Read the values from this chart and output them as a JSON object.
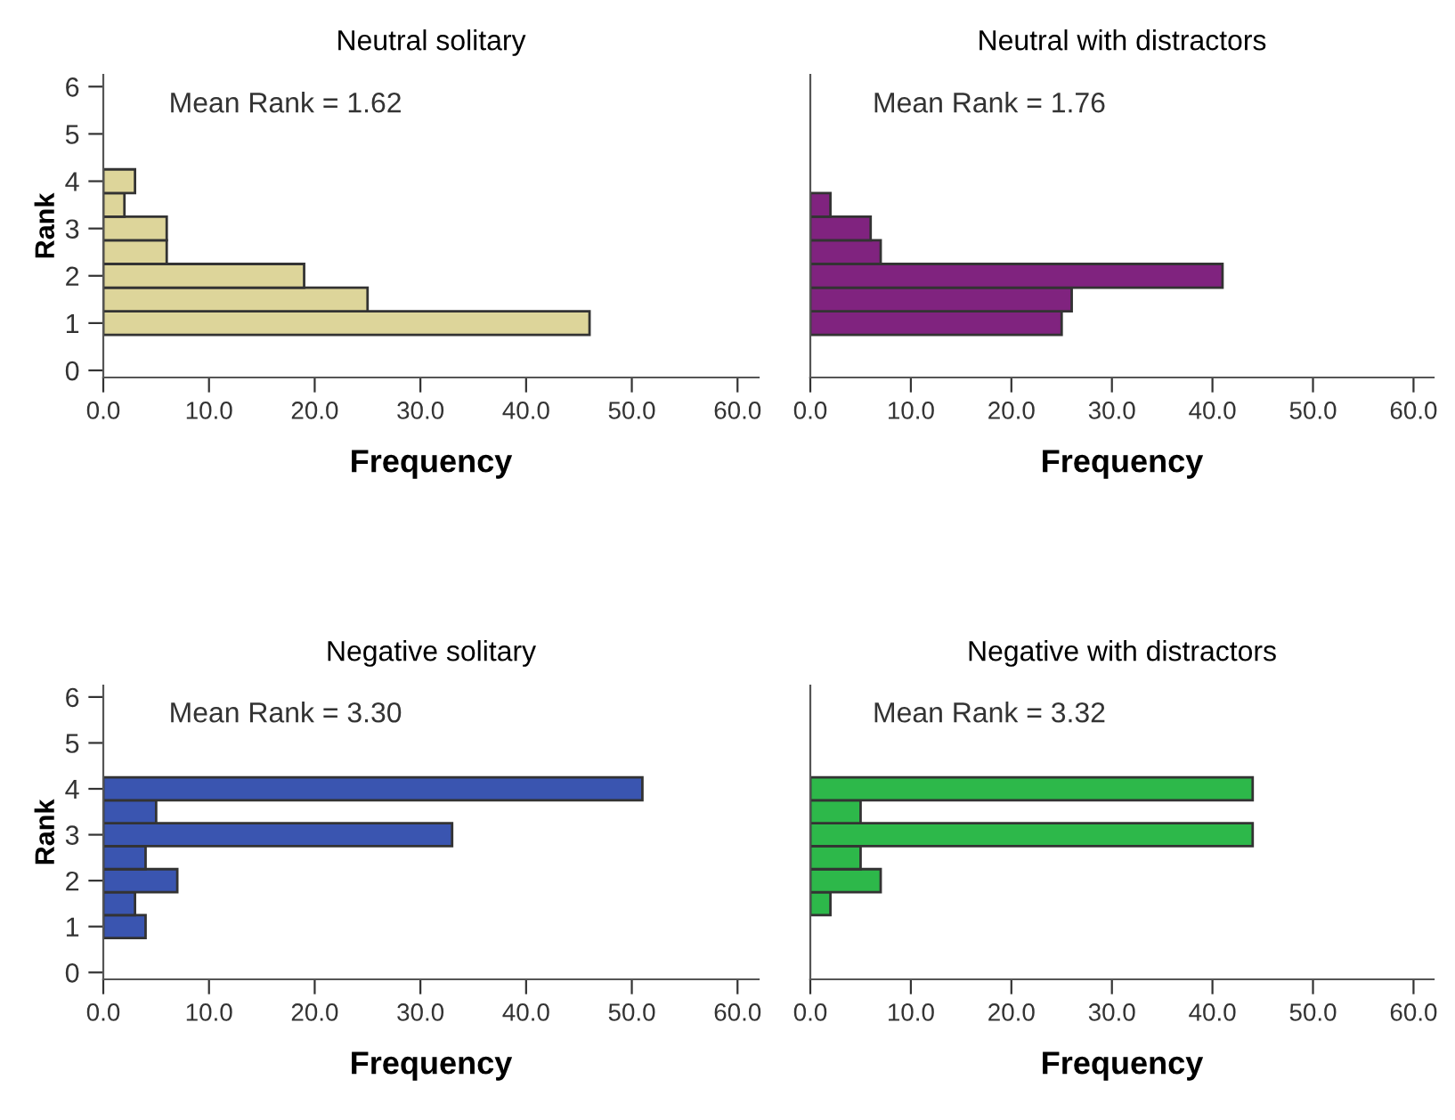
{
  "chart_data": [
    {
      "type": "histogram",
      "orientation": "horizontal",
      "title": "Neutral solitary",
      "xlabel": "Frequency",
      "ylabel": "Rank",
      "bins": [
        0.75,
        1.25,
        1.75,
        2.25,
        2.75,
        3.25,
        3.75,
        4.25
      ],
      "values": [
        46,
        25,
        19,
        6,
        6,
        2,
        3
      ],
      "color": "#ddd59a",
      "xlim": [
        0,
        62
      ],
      "xticks": [
        {
          "value": 0,
          "label": "0.0"
        },
        {
          "value": 10,
          "label": "10.0"
        },
        {
          "value": 20,
          "label": "20.0"
        },
        {
          "value": 30,
          "label": "30.0"
        },
        {
          "value": 40,
          "label": "40.0"
        },
        {
          "value": 50,
          "label": "50.0"
        },
        {
          "value": 60,
          "label": "60.0"
        }
      ],
      "ylim": [
        -0.15,
        6.25
      ],
      "yticks": [
        0,
        1,
        2,
        3,
        4,
        5,
        6
      ],
      "annotations": [
        "Mean Rank = 1.62"
      ],
      "grid": false,
      "legend": false
    },
    {
      "type": "histogram",
      "orientation": "horizontal",
      "title": "Neutral with distractors",
      "xlabel": "Frequency",
      "bins": [
        0.75,
        1.25,
        1.75,
        2.25,
        2.75,
        3.25,
        3.75
      ],
      "values": [
        25,
        26,
        41,
        7,
        6,
        2
      ],
      "color": "#80237f",
      "xlim": [
        0,
        62
      ],
      "xticks": [
        {
          "value": 0,
          "label": "0.0"
        },
        {
          "value": 10,
          "label": "10.0"
        },
        {
          "value": 20,
          "label": "20.0"
        },
        {
          "value": 30,
          "label": "30.0"
        },
        {
          "value": 40,
          "label": "40.0"
        },
        {
          "value": 50,
          "label": "50.0"
        },
        {
          "value": 60,
          "label": "60.0"
        }
      ],
      "ylim": [
        -0.15,
        6.25
      ],
      "yticks": [
        0,
        1,
        2,
        3,
        4,
        5,
        6
      ],
      "tick_labels": "x",
      "annotations": [
        "Mean Rank = 1.76"
      ],
      "grid": false,
      "legend": false
    },
    {
      "type": "histogram",
      "orientation": "horizontal",
      "title": "Negative solitary",
      "xlabel": "Frequency",
      "ylabel": "Rank",
      "bins": [
        0.75,
        1.25,
        1.75,
        2.25,
        2.75,
        3.25,
        3.75,
        4.25
      ],
      "values": [
        4,
        3,
        7,
        4,
        33,
        5,
        51
      ],
      "color": "#3a55b0",
      "xlim": [
        0,
        62
      ],
      "xticks": [
        {
          "value": 0,
          "label": "0.0"
        },
        {
          "value": 10,
          "label": "10.0"
        },
        {
          "value": 20,
          "label": "20.0"
        },
        {
          "value": 30,
          "label": "30.0"
        },
        {
          "value": 40,
          "label": "40.0"
        },
        {
          "value": 50,
          "label": "50.0"
        },
        {
          "value": 60,
          "label": "60.0"
        }
      ],
      "ylim": [
        -0.15,
        6.25
      ],
      "yticks": [
        0,
        1,
        2,
        3,
        4,
        5,
        6
      ],
      "annotations": [
        "Mean Rank = 3.30"
      ],
      "grid": false,
      "legend": false
    },
    {
      "type": "histogram",
      "orientation": "horizontal",
      "title": "Negative with distractors",
      "xlabel": "Frequency",
      "bins": [
        1.25,
        1.75,
        2.25,
        2.75,
        3.25,
        3.75,
        4.25
      ],
      "values": [
        2,
        7,
        5,
        44,
        5,
        44
      ],
      "color": "#2db84a",
      "xlim": [
        0,
        62
      ],
      "xticks": [
        {
          "value": 0,
          "label": "0.0"
        },
        {
          "value": 10,
          "label": "10.0"
        },
        {
          "value": 20,
          "label": "20.0"
        },
        {
          "value": 30,
          "label": "30.0"
        },
        {
          "value": 40,
          "label": "40.0"
        },
        {
          "value": 50,
          "label": "50.0"
        },
        {
          "value": 60,
          "label": "60.0"
        }
      ],
      "ylim": [
        -0.15,
        6.25
      ],
      "yticks": [
        0,
        1,
        2,
        3,
        4,
        5,
        6
      ],
      "tick_labels": "x",
      "annotations": [
        "Mean Rank = 3.32"
      ],
      "grid": false,
      "legend": false
    }
  ]
}
